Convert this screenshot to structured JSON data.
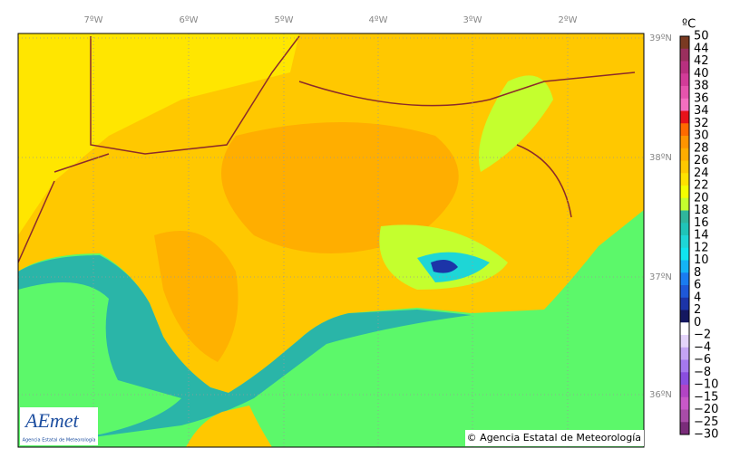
{
  "map": {
    "longitude_labels": [
      "7ºW",
      "6ºW",
      "5ºW",
      "4ºW",
      "3ºW",
      "2ºW"
    ],
    "latitude_labels": [
      "39ºN",
      "38ºN",
      "37ºN",
      "36ºN"
    ],
    "copyright": "© Agencia Estatal de Meteorología"
  },
  "logo": {
    "name": "AEmet",
    "subtitle": "Agencia Estatal de Meteorología"
  },
  "colorbar": {
    "unit": "ºC",
    "labels": [
      "50",
      "44",
      "42",
      "40",
      "38",
      "36",
      "34",
      "32",
      "30",
      "28",
      "26",
      "24",
      "22",
      "20",
      "18",
      "16",
      "14",
      "12",
      "10",
      "8",
      "6",
      "4",
      "2",
      "0",
      "−2",
      "−4",
      "−6",
      "−8",
      "−10",
      "−15",
      "−20",
      "−25",
      "−30"
    ],
    "colors": [
      "#7a3a22",
      "#9a2f5e",
      "#b8307f",
      "#d23c98",
      "#e654ad",
      "#f46fc0",
      "#e8121a",
      "#ff6a00",
      "#ff9400",
      "#ffad00",
      "#ffc800",
      "#ffe200",
      "#f4ff00",
      "#c4ff2e",
      "#2fb59c",
      "#20c4b8",
      "#1ed6d6",
      "#10e4ef",
      "#14b4f6",
      "#1a7cf0",
      "#1e58d8",
      "#1c34a8",
      "#141860",
      "#ffffff",
      "#e4d4fa",
      "#c4a4f4",
      "#a478ee",
      "#8a4ee0",
      "#b244c4",
      "#c858c8",
      "#a84ca8",
      "#7a2c7a"
    ]
  }
}
